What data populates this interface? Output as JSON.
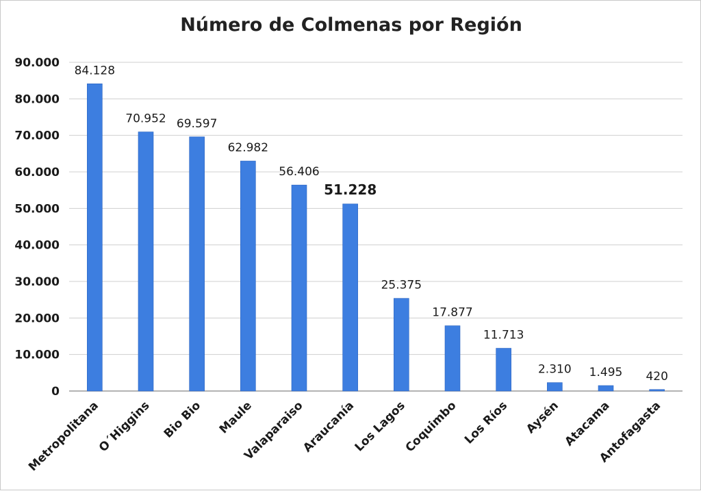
{
  "chart_data": {
    "type": "bar",
    "title": "Número de Colmenas por Región",
    "xlabel": "",
    "ylabel": "",
    "categories": [
      "Metropolitana",
      "O´Higgins",
      "Bio Bio",
      "Maule",
      "Valaparaiso",
      "Araucanía",
      "Los Lagos",
      "Coquimbo",
      "Los Ríos",
      "Aysén",
      "Atacama",
      "Antofagasta"
    ],
    "values": [
      84128,
      70952,
      69597,
      62982,
      56406,
      51228,
      25375,
      17877,
      11713,
      2310,
      1495,
      420
    ],
    "value_labels": [
      "84.128",
      "70.952",
      "69.597",
      "62.982",
      "56.406",
      "51.228",
      "25.375",
      "17.877",
      "11.713",
      "2.310",
      "1.495",
      "420"
    ],
    "emphasized_label": "51.228",
    "ylim": [
      0,
      90000
    ],
    "yticks": [
      0,
      10000,
      20000,
      30000,
      40000,
      50000,
      60000,
      70000,
      80000,
      90000
    ],
    "ytick_labels": [
      "0",
      "10.000",
      "20.000",
      "30.000",
      "40.000",
      "50.000",
      "60.000",
      "70.000",
      "80.000",
      "90.000"
    ],
    "grid": true,
    "legend": "none",
    "colors": {
      "bar": "#3d7ee0",
      "bar_edge": "#2a63c0",
      "grid": "#cfcfcf",
      "axis": "#9a9a9a",
      "text": "#1a1a1a"
    }
  }
}
